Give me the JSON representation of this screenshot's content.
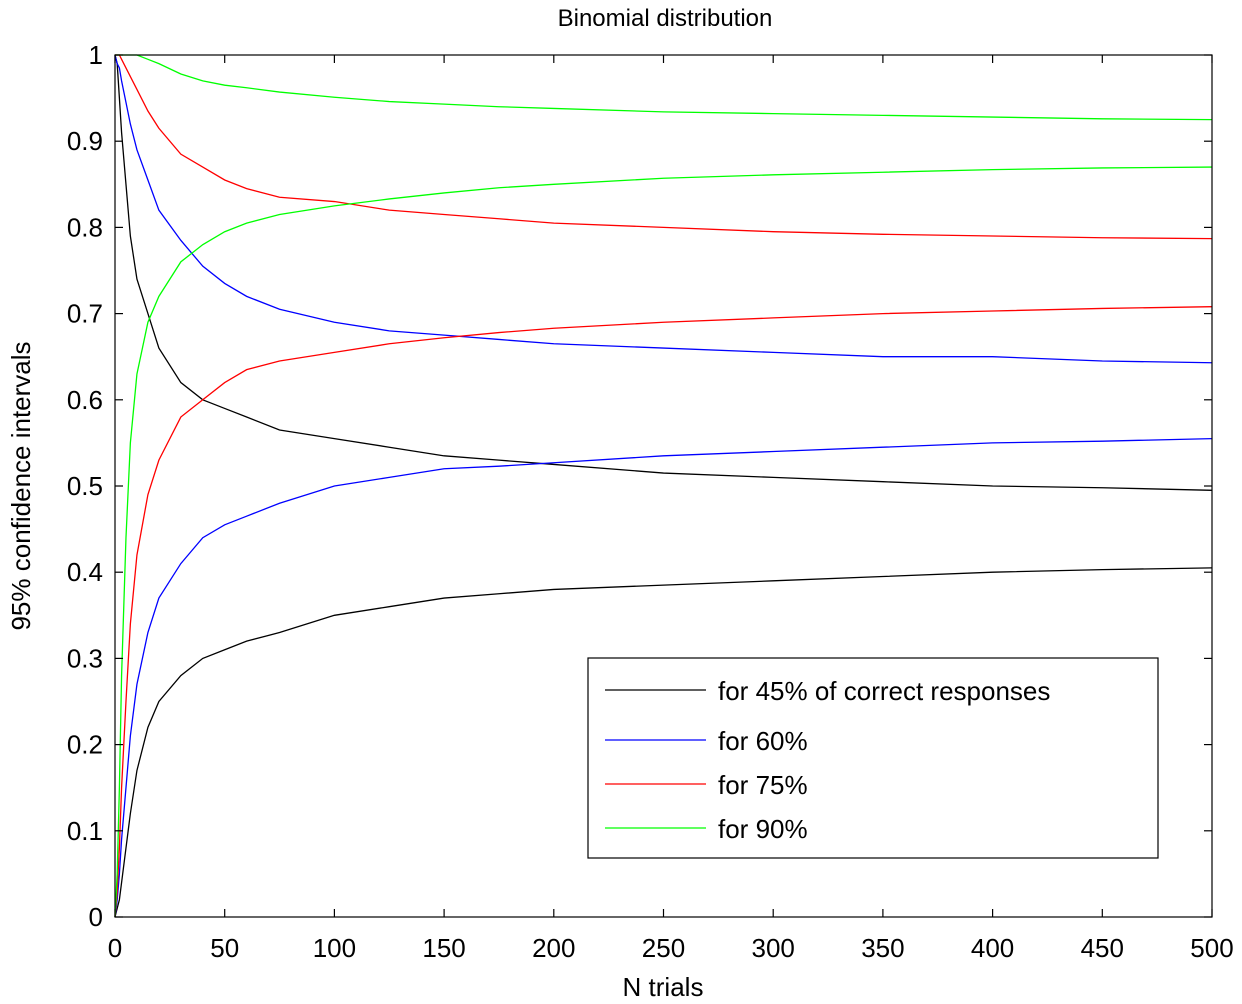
{
  "chart_data": {
    "type": "line",
    "title": "Binomial distribution",
    "xlabel": "N trials",
    "ylabel": "95% confidence intervals",
    "xlim": [
      0,
      500
    ],
    "ylim": [
      0,
      1
    ],
    "xticks": [
      0,
      50,
      100,
      150,
      200,
      250,
      300,
      350,
      400,
      450,
      500
    ],
    "yticks": [
      0,
      0.1,
      0.2,
      0.3,
      0.4,
      0.5,
      0.6,
      0.7,
      0.8,
      0.9,
      1
    ],
    "xtick_labels": [
      "0",
      "50",
      "100",
      "150",
      "200",
      "250",
      "300",
      "350",
      "400",
      "450",
      "500"
    ],
    "ytick_labels": [
      "0",
      "0.1",
      "0.2",
      "0.3",
      "0.4",
      "0.5",
      "0.6",
      "0.7",
      "0.8",
      "0.9",
      "1"
    ],
    "grid": false,
    "legend_position": "bottom-right",
    "x": [
      1,
      2,
      3,
      5,
      7,
      10,
      15,
      20,
      30,
      40,
      50,
      60,
      75,
      100,
      125,
      150,
      175,
      200,
      250,
      300,
      350,
      400,
      450,
      500
    ],
    "series": [
      {
        "name": "for 45% of correct responses",
        "color": "#000000",
        "lower": [
          0.01,
          0.02,
          0.04,
          0.08,
          0.12,
          0.17,
          0.22,
          0.25,
          0.28,
          0.3,
          0.31,
          0.32,
          0.33,
          0.35,
          0.36,
          0.37,
          0.375,
          0.38,
          0.385,
          0.39,
          0.395,
          0.4,
          0.403,
          0.405
        ],
        "upper": [
          0.99,
          0.95,
          0.91,
          0.85,
          0.79,
          0.74,
          0.7,
          0.66,
          0.62,
          0.6,
          0.59,
          0.58,
          0.565,
          0.555,
          0.545,
          0.535,
          0.53,
          0.525,
          0.515,
          0.51,
          0.505,
          0.5,
          0.498,
          0.495
        ]
      },
      {
        "name": "for 60%",
        "color": "#0000ff",
        "lower": [
          0.02,
          0.05,
          0.09,
          0.15,
          0.21,
          0.27,
          0.33,
          0.37,
          0.41,
          0.44,
          0.455,
          0.465,
          0.48,
          0.5,
          0.51,
          0.52,
          0.523,
          0.527,
          0.535,
          0.54,
          0.545,
          0.55,
          0.552,
          0.555
        ],
        "upper": [
          0.99,
          0.985,
          0.97,
          0.945,
          0.92,
          0.89,
          0.855,
          0.82,
          0.785,
          0.755,
          0.735,
          0.72,
          0.705,
          0.69,
          0.68,
          0.675,
          0.67,
          0.665,
          0.66,
          0.655,
          0.65,
          0.65,
          0.645,
          0.643
        ]
      },
      {
        "name": "for 75%",
        "color": "#ff0000",
        "lower": [
          0.03,
          0.08,
          0.15,
          0.25,
          0.34,
          0.42,
          0.49,
          0.53,
          0.58,
          0.6,
          0.62,
          0.635,
          0.645,
          0.655,
          0.665,
          0.672,
          0.678,
          0.683,
          0.69,
          0.695,
          0.7,
          0.703,
          0.706,
          0.708
        ],
        "upper": [
          1.0,
          1.0,
          0.995,
          0.985,
          0.975,
          0.96,
          0.935,
          0.915,
          0.885,
          0.87,
          0.855,
          0.845,
          0.835,
          0.83,
          0.82,
          0.815,
          0.81,
          0.805,
          0.8,
          0.795,
          0.792,
          0.79,
          0.788,
          0.787
        ]
      },
      {
        "name": "for 90%",
        "color": "#00ff00",
        "lower": [
          0.05,
          0.15,
          0.28,
          0.44,
          0.55,
          0.63,
          0.69,
          0.72,
          0.76,
          0.78,
          0.795,
          0.805,
          0.815,
          0.825,
          0.833,
          0.84,
          0.846,
          0.85,
          0.857,
          0.861,
          0.864,
          0.867,
          0.869,
          0.87
        ],
        "upper": [
          1.0,
          1.0,
          1.0,
          1.0,
          1.0,
          1.0,
          0.995,
          0.99,
          0.978,
          0.97,
          0.965,
          0.962,
          0.957,
          0.951,
          0.946,
          0.943,
          0.94,
          0.938,
          0.934,
          0.932,
          0.93,
          0.928,
          0.926,
          0.925
        ]
      }
    ]
  }
}
